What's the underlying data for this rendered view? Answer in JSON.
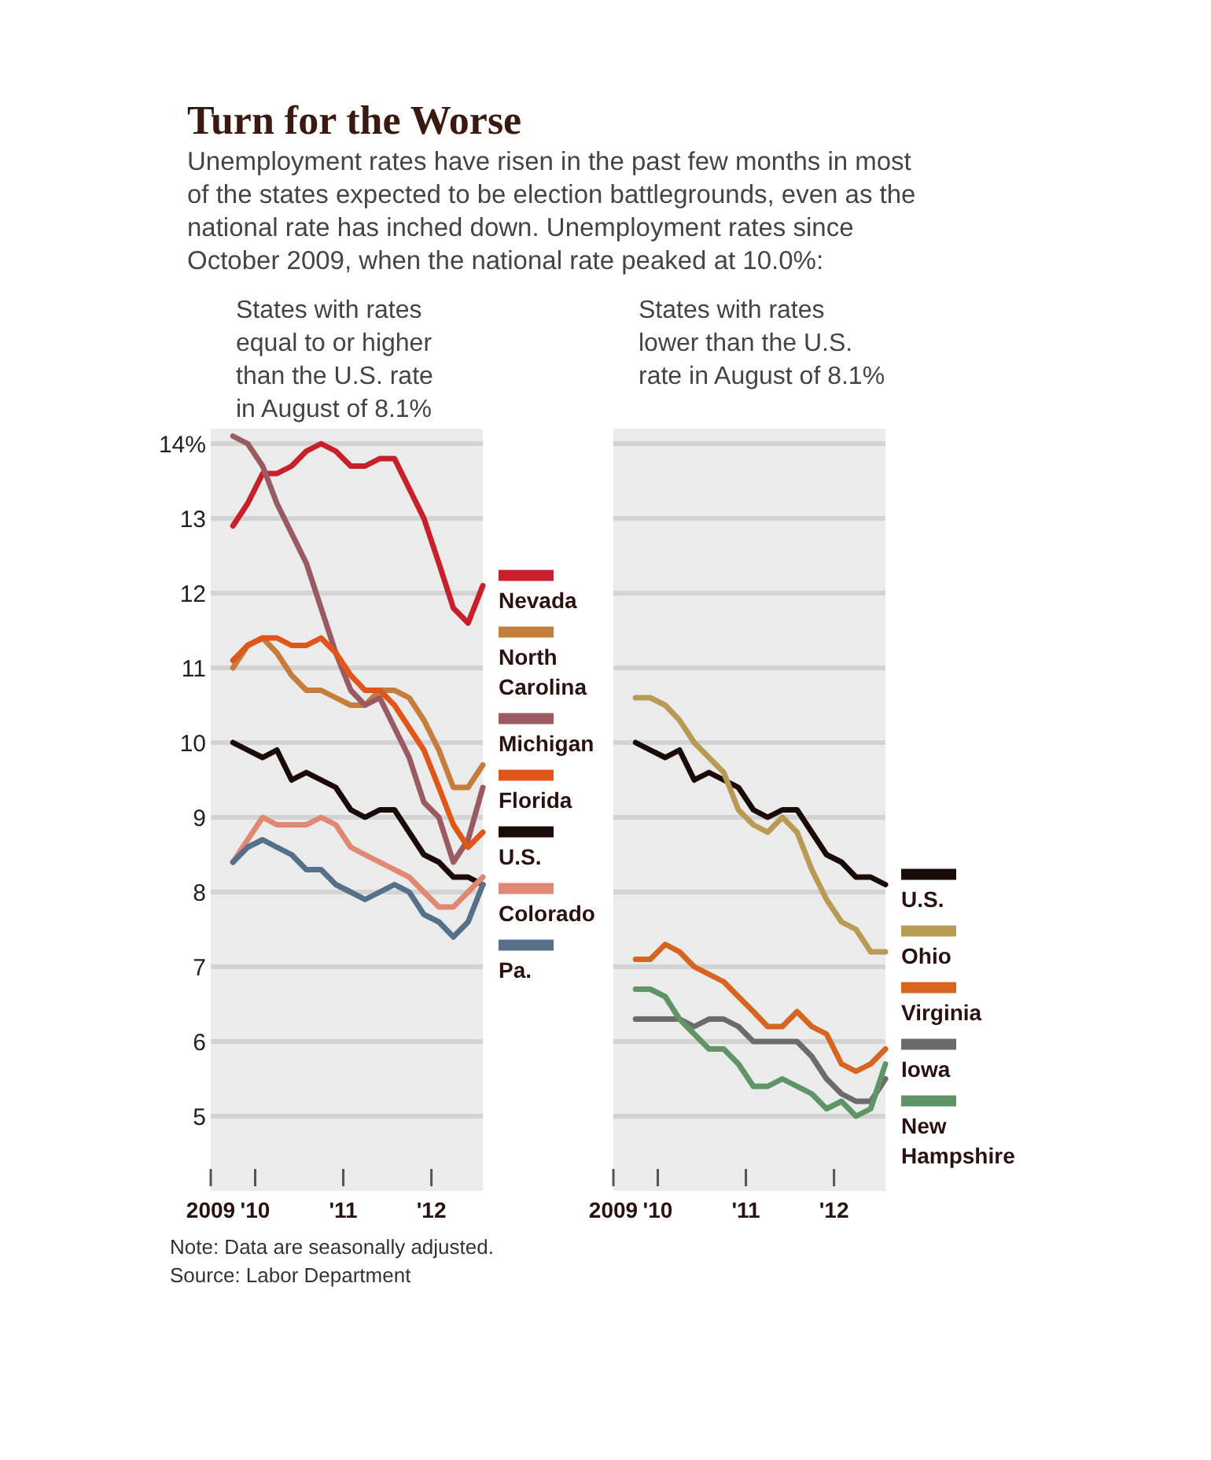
{
  "chart_data": [
    {
      "type": "line",
      "title": "Turn for the Worse",
      "subtitle": "Unemployment rates have risen in the past few months in most\nof the states expected to be election battlegrounds, even as the\nnational rate has inched down. Unemployment rates since\nOctober 2009, when the national rate peaked at 10.0%:",
      "annotations": [
        "States with rates\nequal to or higher\nthan the U.S. rate\nin August of 8.1%",
        "Note: Data are seasonally adjusted.",
        "Source: Labor Department"
      ],
      "x": [
        "2009-10",
        "2009-12",
        "2010-02",
        "2010-04",
        "2010-06",
        "2010-08",
        "2010-10",
        "2010-12",
        "2011-02",
        "2011-04",
        "2011-06",
        "2011-08",
        "2011-10",
        "2011-12",
        "2012-02",
        "2012-04",
        "2012-06",
        "2012-08"
      ],
      "xlim": [
        "2009-07",
        "2012-08"
      ],
      "xticks": [
        {
          "value": "2009-07",
          "label": "2009"
        },
        {
          "value": "2010-01",
          "label": "'10"
        },
        {
          "value": "2011-01",
          "label": "'11"
        },
        {
          "value": "2012-01",
          "label": "'12"
        }
      ],
      "ylim": [
        4,
        14.2
      ],
      "yticks": [
        5,
        6,
        7,
        8,
        9,
        10,
        11,
        12,
        13,
        {
          "value": 14,
          "label": "14%"
        }
      ],
      "grid": "y",
      "legend": "right",
      "series": [
        {
          "name": "Nevada",
          "color": "#c8202a",
          "values": [
            12.9,
            13.2,
            13.6,
            13.6,
            13.7,
            13.9,
            14.0,
            13.9,
            13.7,
            13.7,
            13.8,
            13.8,
            13.4,
            13.0,
            12.4,
            11.8,
            11.6,
            12.1
          ]
        },
        {
          "name": "North Carolina",
          "color": "#c47d3a",
          "values": [
            11.0,
            11.3,
            11.4,
            11.2,
            10.9,
            10.7,
            10.7,
            10.6,
            10.5,
            10.5,
            10.7,
            10.7,
            10.6,
            10.3,
            9.9,
            9.4,
            9.4,
            9.7
          ]
        },
        {
          "name": "Michigan",
          "color": "#9a5a62",
          "values": [
            14.1,
            14.0,
            13.7,
            13.2,
            12.8,
            12.4,
            11.8,
            11.2,
            10.7,
            10.5,
            10.6,
            10.2,
            9.8,
            9.2,
            9.0,
            8.4,
            8.7,
            9.4
          ]
        },
        {
          "name": "Florida",
          "color": "#e0561a",
          "values": [
            11.1,
            11.3,
            11.4,
            11.4,
            11.3,
            11.3,
            11.4,
            11.2,
            10.9,
            10.7,
            10.7,
            10.5,
            10.2,
            9.9,
            9.4,
            8.9,
            8.6,
            8.8
          ]
        },
        {
          "name": "U.S.",
          "color": "#1a0a08",
          "values": [
            10.0,
            9.9,
            9.8,
            9.9,
            9.5,
            9.6,
            9.5,
            9.4,
            9.1,
            9.0,
            9.1,
            9.1,
            8.8,
            8.5,
            8.4,
            8.2,
            8.2,
            8.1
          ]
        },
        {
          "name": "Colorado",
          "color": "#e08872",
          "values": [
            8.4,
            8.7,
            9.0,
            8.9,
            8.9,
            8.9,
            9.0,
            8.9,
            8.6,
            8.5,
            8.4,
            8.3,
            8.2,
            8.0,
            7.8,
            7.8,
            8.0,
            8.2
          ]
        },
        {
          "name": "Pa.",
          "color": "#56708a",
          "values": [
            8.4,
            8.6,
            8.7,
            8.6,
            8.5,
            8.3,
            8.3,
            8.1,
            8.0,
            7.9,
            8.0,
            8.1,
            8.0,
            7.7,
            7.6,
            7.4,
            7.6,
            8.1
          ]
        }
      ]
    },
    {
      "type": "line",
      "annotations": [
        "States with rates\nlower than the U.S.\nrate in August of 8.1%"
      ],
      "x": [
        "2009-10",
        "2009-12",
        "2010-02",
        "2010-04",
        "2010-06",
        "2010-08",
        "2010-10",
        "2010-12",
        "2011-02",
        "2011-04",
        "2011-06",
        "2011-08",
        "2011-10",
        "2011-12",
        "2012-02",
        "2012-04",
        "2012-06",
        "2012-08"
      ],
      "xlim": [
        "2009-07",
        "2012-08"
      ],
      "xticks": [
        {
          "value": "2009-07",
          "label": "2009"
        },
        {
          "value": "2010-01",
          "label": "'10"
        },
        {
          "value": "2011-01",
          "label": "'11"
        },
        {
          "value": "2012-01",
          "label": "'12"
        }
      ],
      "ylim": [
        4,
        14.2
      ],
      "yticks": [
        5,
        6,
        7,
        8,
        9,
        10,
        11,
        12,
        13,
        14
      ],
      "grid": "y",
      "legend": "right",
      "tick_labels": "x",
      "series": [
        {
          "name": "U.S.",
          "color": "#1a0a08",
          "values": [
            10.0,
            9.9,
            9.8,
            9.9,
            9.5,
            9.6,
            9.5,
            9.4,
            9.1,
            9.0,
            9.1,
            9.1,
            8.8,
            8.5,
            8.4,
            8.2,
            8.2,
            8.1
          ]
        },
        {
          "name": "Ohio",
          "color": "#b89a55",
          "values": [
            10.6,
            10.6,
            10.5,
            10.3,
            10.0,
            9.8,
            9.6,
            9.1,
            8.9,
            8.8,
            9.0,
            8.8,
            8.3,
            7.9,
            7.6,
            7.5,
            7.2,
            7.2
          ]
        },
        {
          "name": "Virginia",
          "color": "#d8651f",
          "values": [
            7.1,
            7.1,
            7.3,
            7.2,
            7.0,
            6.9,
            6.8,
            6.6,
            6.4,
            6.2,
            6.2,
            6.4,
            6.2,
            6.1,
            5.7,
            5.6,
            5.7,
            5.9
          ]
        },
        {
          "name": "Iowa",
          "color": "#6e6a6a",
          "values": [
            6.3,
            6.3,
            6.3,
            6.3,
            6.2,
            6.3,
            6.3,
            6.2,
            6.0,
            6.0,
            6.0,
            6.0,
            5.8,
            5.5,
            5.3,
            5.2,
            5.2,
            5.5
          ]
        },
        {
          "name": "New Hampshire",
          "color": "#5f9466",
          "values": [
            6.7,
            6.7,
            6.6,
            6.3,
            6.1,
            5.9,
            5.9,
            5.7,
            5.4,
            5.4,
            5.5,
            5.4,
            5.3,
            5.1,
            5.2,
            5.0,
            5.1,
            5.7
          ]
        }
      ]
    }
  ]
}
